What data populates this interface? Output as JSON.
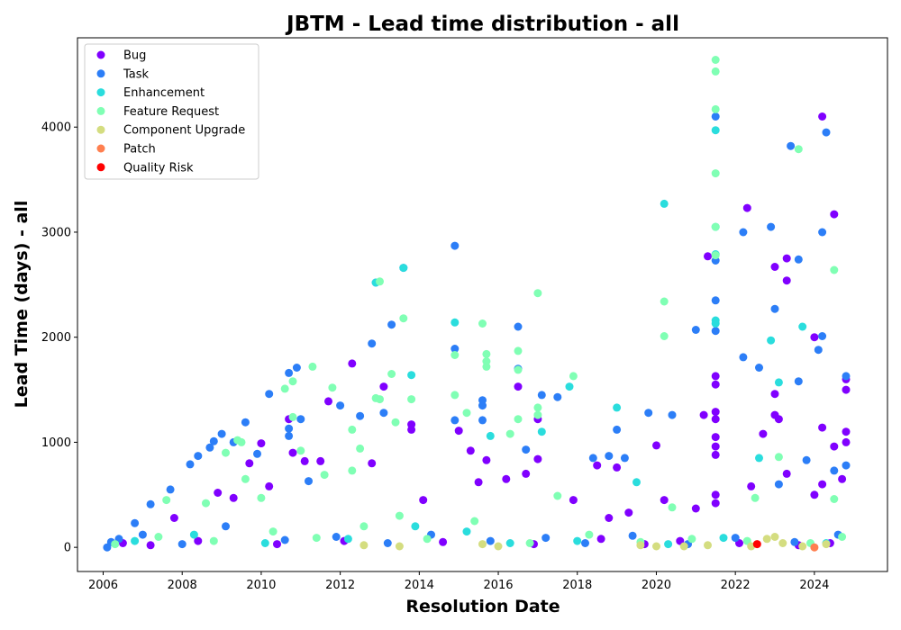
{
  "chart_data": {
    "type": "scatter",
    "title": "JBTM - Lead time distribution - all",
    "xlabel": "Resolution Date",
    "ylabel": "Lead Time (days) - all",
    "xlim": [
      2005.35,
      2025.85
    ],
    "ylim": [
      -230,
      4850
    ],
    "x_ticks": [
      2006,
      2008,
      2010,
      2012,
      2014,
      2016,
      2018,
      2020,
      2022,
      2024
    ],
    "y_ticks": [
      0,
      1000,
      2000,
      3000,
      4000
    ],
    "legend_position": "top-left",
    "grid": false,
    "series": [
      {
        "name": "Bug",
        "color": "#8000ff",
        "points": [
          [
            2007.8,
            280
          ],
          [
            2008.9,
            520
          ],
          [
            2009.3,
            470
          ],
          [
            2009.7,
            800
          ],
          [
            2010.0,
            990
          ],
          [
            2010.2,
            580
          ],
          [
            2010.7,
            1220
          ],
          [
            2010.8,
            900
          ],
          [
            2011.1,
            820
          ],
          [
            2011.5,
            820
          ],
          [
            2011.7,
            1390
          ],
          [
            2012.3,
            1750
          ],
          [
            2012.8,
            800
          ],
          [
            2013.1,
            1530
          ],
          [
            2013.8,
            1170
          ],
          [
            2013.8,
            1120
          ],
          [
            2014.1,
            450
          ],
          [
            2015.0,
            1110
          ],
          [
            2015.3,
            920
          ],
          [
            2015.5,
            620
          ],
          [
            2015.7,
            830
          ],
          [
            2016.2,
            650
          ],
          [
            2016.5,
            1530
          ],
          [
            2016.7,
            700
          ],
          [
            2017.0,
            1220
          ],
          [
            2017.0,
            840
          ],
          [
            2017.9,
            450
          ],
          [
            2018.5,
            780
          ],
          [
            2018.8,
            280
          ],
          [
            2019.0,
            760
          ],
          [
            2019.3,
            330
          ],
          [
            2020.0,
            970
          ],
          [
            2020.2,
            450
          ],
          [
            2021.0,
            370
          ],
          [
            2021.2,
            1260
          ],
          [
            2021.3,
            2770
          ],
          [
            2021.5,
            1630
          ],
          [
            2021.5,
            1550
          ],
          [
            2021.5,
            1290
          ],
          [
            2021.5,
            1220
          ],
          [
            2021.5,
            1050
          ],
          [
            2021.5,
            960
          ],
          [
            2021.5,
            880
          ],
          [
            2021.5,
            500
          ],
          [
            2021.5,
            420
          ],
          [
            2022.3,
            3230
          ],
          [
            2022.4,
            580
          ],
          [
            2022.7,
            1080
          ],
          [
            2023.0,
            2670
          ],
          [
            2023.0,
            1460
          ],
          [
            2023.0,
            1260
          ],
          [
            2023.1,
            1220
          ],
          [
            2023.3,
            2540
          ],
          [
            2023.3,
            2750
          ],
          [
            2023.3,
            700
          ],
          [
            2024.0,
            2000
          ],
          [
            2024.0,
            500
          ],
          [
            2024.2,
            4100
          ],
          [
            2024.2,
            1140
          ],
          [
            2024.2,
            600
          ],
          [
            2024.5,
            3170
          ],
          [
            2024.5,
            960
          ],
          [
            2024.8,
            1600
          ],
          [
            2024.8,
            1500
          ],
          [
            2024.8,
            1100
          ],
          [
            2024.8,
            1000
          ],
          [
            2024.7,
            650
          ],
          [
            2006.5,
            40
          ],
          [
            2007.2,
            20
          ],
          [
            2008.4,
            60
          ],
          [
            2010.4,
            30
          ],
          [
            2012.1,
            60
          ],
          [
            2014.6,
            50
          ],
          [
            2016.9,
            30
          ],
          [
            2018.6,
            80
          ],
          [
            2019.7,
            30
          ],
          [
            2020.6,
            60
          ],
          [
            2022.1,
            40
          ],
          [
            2023.6,
            20
          ],
          [
            2024.4,
            40
          ]
        ]
      },
      {
        "name": "Task",
        "color": "#2c7ef7",
        "points": [
          [
            2006.1,
            0
          ],
          [
            2006.4,
            80
          ],
          [
            2006.8,
            230
          ],
          [
            2007.2,
            410
          ],
          [
            2007.7,
            550
          ],
          [
            2008.2,
            790
          ],
          [
            2008.4,
            870
          ],
          [
            2008.7,
            950
          ],
          [
            2008.8,
            1010
          ],
          [
            2009.0,
            1080
          ],
          [
            2009.3,
            1000
          ],
          [
            2009.6,
            1190
          ],
          [
            2009.9,
            890
          ],
          [
            2010.2,
            1460
          ],
          [
            2010.7,
            1660
          ],
          [
            2010.7,
            1130
          ],
          [
            2010.7,
            1060
          ],
          [
            2010.9,
            1710
          ],
          [
            2011.0,
            1220
          ],
          [
            2011.2,
            630
          ],
          [
            2012.0,
            1350
          ],
          [
            2012.5,
            1250
          ],
          [
            2012.8,
            1940
          ],
          [
            2012.9,
            2520
          ],
          [
            2013.1,
            1280
          ],
          [
            2013.3,
            2120
          ],
          [
            2013.6,
            2660
          ],
          [
            2014.9,
            2870
          ],
          [
            2014.9,
            1890
          ],
          [
            2014.9,
            1210
          ],
          [
            2015.6,
            1400
          ],
          [
            2015.6,
            1350
          ],
          [
            2015.6,
            1210
          ],
          [
            2016.5,
            2100
          ],
          [
            2016.5,
            1700
          ],
          [
            2016.7,
            930
          ],
          [
            2017.1,
            1450
          ],
          [
            2017.5,
            1430
          ],
          [
            2018.4,
            850
          ],
          [
            2018.8,
            870
          ],
          [
            2019.0,
            1120
          ],
          [
            2019.2,
            850
          ],
          [
            2019.8,
            1280
          ],
          [
            2020.4,
            1260
          ],
          [
            2021.0,
            2070
          ],
          [
            2021.5,
            4100
          ],
          [
            2021.5,
            2350
          ],
          [
            2021.5,
            2730
          ],
          [
            2021.5,
            2060
          ],
          [
            2022.2,
            3000
          ],
          [
            2022.2,
            1810
          ],
          [
            2022.6,
            1710
          ],
          [
            2022.9,
            3050
          ],
          [
            2023.0,
            2270
          ],
          [
            2023.1,
            600
          ],
          [
            2023.4,
            3820
          ],
          [
            2023.6,
            2740
          ],
          [
            2023.6,
            1580
          ],
          [
            2023.8,
            830
          ],
          [
            2024.2,
            3000
          ],
          [
            2024.1,
            1880
          ],
          [
            2024.2,
            2010
          ],
          [
            2024.3,
            3950
          ],
          [
            2024.5,
            730
          ],
          [
            2024.8,
            780
          ],
          [
            2024.8,
            1630
          ],
          [
            2006.2,
            50
          ],
          [
            2007.0,
            120
          ],
          [
            2008.0,
            30
          ],
          [
            2009.1,
            200
          ],
          [
            2010.6,
            70
          ],
          [
            2011.9,
            100
          ],
          [
            2013.2,
            40
          ],
          [
            2014.3,
            120
          ],
          [
            2015.8,
            60
          ],
          [
            2017.2,
            90
          ],
          [
            2018.2,
            40
          ],
          [
            2019.4,
            110
          ],
          [
            2020.8,
            30
          ],
          [
            2022.0,
            90
          ],
          [
            2023.5,
            50
          ],
          [
            2024.6,
            120
          ]
        ]
      },
      {
        "name": "Enhancement",
        "color": "#2adddd",
        "points": [
          [
            2012.9,
            2520
          ],
          [
            2013.6,
            2660
          ],
          [
            2013.8,
            1640
          ],
          [
            2014.9,
            2140
          ],
          [
            2015.8,
            1060
          ],
          [
            2017.1,
            1100
          ],
          [
            2017.8,
            1530
          ],
          [
            2019.0,
            1330
          ],
          [
            2019.5,
            620
          ],
          [
            2020.2,
            3270
          ],
          [
            2021.5,
            3970
          ],
          [
            2021.5,
            3050
          ],
          [
            2021.5,
            2790
          ],
          [
            2021.5,
            2160
          ],
          [
            2021.5,
            2130
          ],
          [
            2022.9,
            1970
          ],
          [
            2023.1,
            1570
          ],
          [
            2023.7,
            2100
          ],
          [
            2006.8,
            60
          ],
          [
            2008.3,
            120
          ],
          [
            2010.1,
            40
          ],
          [
            2012.2,
            80
          ],
          [
            2013.9,
            200
          ],
          [
            2015.2,
            150
          ],
          [
            2016.3,
            40
          ],
          [
            2018.0,
            60
          ],
          [
            2020.3,
            30
          ],
          [
            2021.7,
            90
          ],
          [
            2022.6,
            850
          ],
          [
            2024.3,
            40
          ]
        ]
      },
      {
        "name": "Feature Request",
        "color": "#80ffb4",
        "points": [
          [
            2007.6,
            450
          ],
          [
            2008.6,
            420
          ],
          [
            2009.1,
            900
          ],
          [
            2009.4,
            1020
          ],
          [
            2009.5,
            1000
          ],
          [
            2009.6,
            650
          ],
          [
            2010.0,
            470
          ],
          [
            2010.6,
            1510
          ],
          [
            2010.8,
            1580
          ],
          [
            2010.8,
            1240
          ],
          [
            2011.0,
            920
          ],
          [
            2011.3,
            1720
          ],
          [
            2011.6,
            690
          ],
          [
            2011.8,
            1520
          ],
          [
            2012.3,
            1120
          ],
          [
            2012.3,
            730
          ],
          [
            2012.5,
            940
          ],
          [
            2012.9,
            1420
          ],
          [
            2013.0,
            2530
          ],
          [
            2013.0,
            1410
          ],
          [
            2013.3,
            1650
          ],
          [
            2013.4,
            1190
          ],
          [
            2013.6,
            2180
          ],
          [
            2013.8,
            1410
          ],
          [
            2014.9,
            1450
          ],
          [
            2014.9,
            1830
          ],
          [
            2015.2,
            1280
          ],
          [
            2015.6,
            2130
          ],
          [
            2015.7,
            1840
          ],
          [
            2015.7,
            1770
          ],
          [
            2015.7,
            1720
          ],
          [
            2016.3,
            1080
          ],
          [
            2016.5,
            1870
          ],
          [
            2016.5,
            1690
          ],
          [
            2016.5,
            1220
          ],
          [
            2017.0,
            2420
          ],
          [
            2017.0,
            1330
          ],
          [
            2017.0,
            1260
          ],
          [
            2017.5,
            490
          ],
          [
            2017.9,
            1630
          ],
          [
            2020.2,
            2010
          ],
          [
            2020.2,
            2340
          ],
          [
            2020.4,
            380
          ],
          [
            2021.5,
            4640
          ],
          [
            2021.5,
            4530
          ],
          [
            2021.5,
            4170
          ],
          [
            2021.5,
            3560
          ],
          [
            2021.5,
            3050
          ],
          [
            2021.5,
            2780
          ],
          [
            2022.5,
            470
          ],
          [
            2023.1,
            860
          ],
          [
            2023.6,
            3790
          ],
          [
            2024.5,
            2640
          ],
          [
            2024.5,
            460
          ],
          [
            2006.3,
            30
          ],
          [
            2007.4,
            100
          ],
          [
            2008.8,
            60
          ],
          [
            2010.3,
            150
          ],
          [
            2011.4,
            90
          ],
          [
            2012.6,
            200
          ],
          [
            2013.5,
            300
          ],
          [
            2014.2,
            80
          ],
          [
            2015.4,
            250
          ],
          [
            2016.8,
            40
          ],
          [
            2018.3,
            120
          ],
          [
            2019.6,
            50
          ],
          [
            2020.9,
            80
          ],
          [
            2022.3,
            60
          ],
          [
            2023.9,
            40
          ],
          [
            2024.7,
            100
          ]
        ]
      },
      {
        "name": "Component Upgrade",
        "color": "#d4dd80",
        "points": [
          [
            2012.6,
            20
          ],
          [
            2013.5,
            10
          ],
          [
            2015.6,
            30
          ],
          [
            2016.0,
            10
          ],
          [
            2019.6,
            20
          ],
          [
            2020.0,
            10
          ],
          [
            2020.7,
            10
          ],
          [
            2021.3,
            20
          ],
          [
            2022.4,
            10
          ],
          [
            2022.8,
            80
          ],
          [
            2023.0,
            100
          ],
          [
            2023.2,
            40
          ],
          [
            2023.7,
            10
          ],
          [
            2024.3,
            30
          ]
        ]
      },
      {
        "name": "Patch",
        "color": "#ff7f4f",
        "points": [
          [
            2024.0,
            0
          ]
        ]
      },
      {
        "name": "Quality Risk",
        "color": "#ff0000",
        "points": [
          [
            2022.55,
            30
          ]
        ]
      }
    ]
  }
}
